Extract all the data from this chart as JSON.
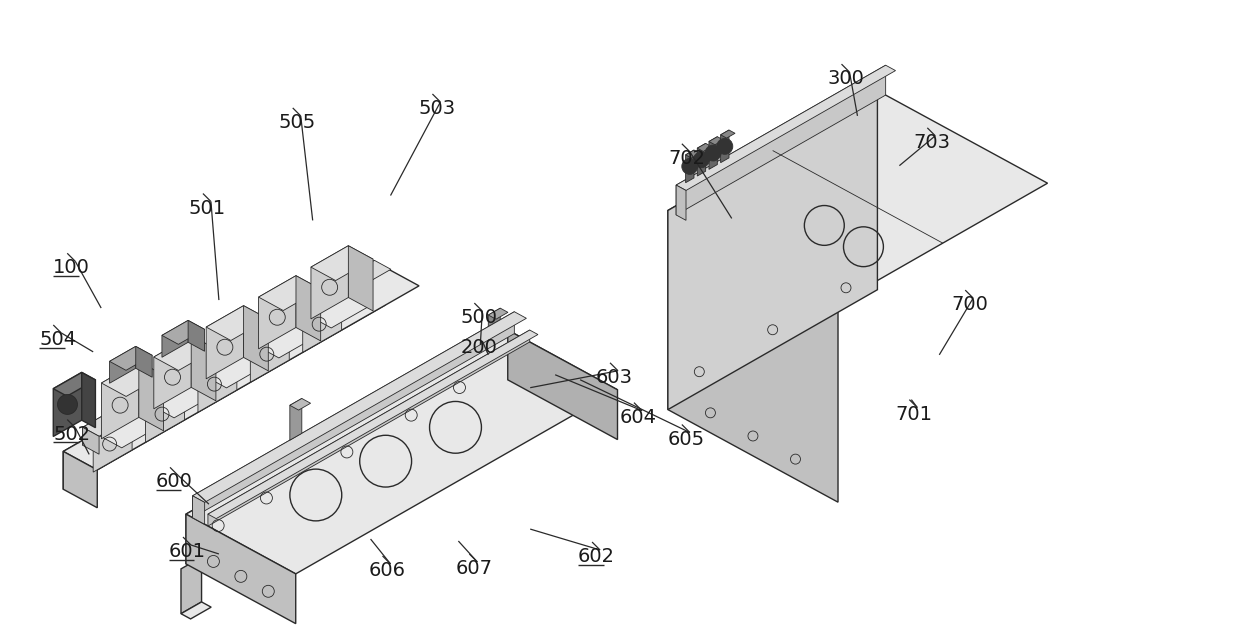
{
  "bg_color": "#ffffff",
  "lc": "#2a2a2a",
  "lw": 1.0,
  "tlw": 0.6,
  "fig_w": 12.4,
  "fig_h": 6.35,
  "face_colors": {
    "top": "#e8e8e8",
    "front": "#d0d0d0",
    "side": "#c0c0c0",
    "dark": "#b0b0b0",
    "rail_top": "#dcdcdc",
    "rail_front": "#c8c8c8",
    "block_top": "#e0e0e0",
    "block_front": "#cecece",
    "block_side": "#bcbcbc"
  },
  "underlined": [
    "100",
    "502",
    "504",
    "600",
    "601",
    "602"
  ]
}
